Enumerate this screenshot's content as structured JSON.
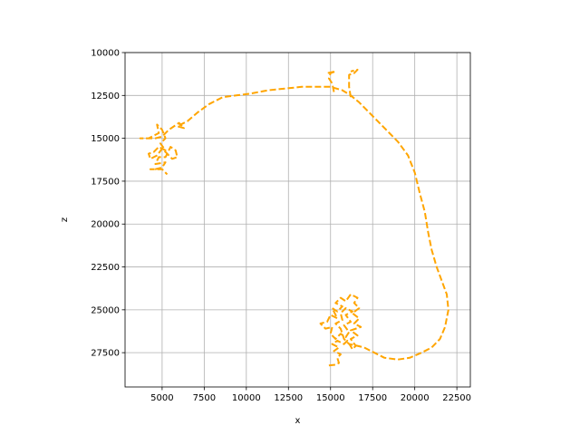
{
  "chart_data": {
    "type": "line",
    "title": "",
    "xlabel": "x",
    "ylabel": "z",
    "xlim": [
      2800,
      23300
    ],
    "ylim": [
      29500,
      10000
    ],
    "y_inverted": true,
    "grid": true,
    "x_ticks": [
      5000,
      7500,
      10000,
      12500,
      15000,
      17500,
      20000,
      22500
    ],
    "x_tick_labels": [
      "5000",
      "7500",
      "10000",
      "12500",
      "15000",
      "17500",
      "20000",
      "22500"
    ],
    "y_ticks": [
      10000,
      12500,
      15000,
      17500,
      20000,
      22500,
      25000,
      27500
    ],
    "y_tick_labels": [
      "10000",
      "12500",
      "15000",
      "17500",
      "20000",
      "22500",
      "25000",
      "27500"
    ],
    "colors": {
      "series": "#FFA500",
      "grid": "#b0b0b0",
      "frame": "#000000"
    },
    "line_style": "dashed",
    "series": [
      {
        "points": [
          [
            14900,
            28250
          ],
          [
            15300,
            28200
          ],
          [
            15500,
            28100
          ],
          [
            15400,
            27800
          ],
          [
            15600,
            27600
          ],
          [
            15200,
            27400
          ],
          [
            15500,
            27200
          ],
          [
            15100,
            27000
          ],
          [
            15400,
            26800
          ],
          [
            15800,
            27000
          ],
          [
            16000,
            26800
          ],
          [
            16300,
            27300
          ],
          [
            16500,
            27100
          ],
          [
            16200,
            26700
          ],
          [
            16600,
            26500
          ],
          [
            16200,
            26200
          ],
          [
            16800,
            26000
          ],
          [
            16400,
            25800
          ],
          [
            16700,
            25500
          ],
          [
            16300,
            25200
          ],
          [
            16700,
            24900
          ],
          [
            16400,
            24600
          ],
          [
            16600,
            24300
          ],
          [
            16200,
            24100
          ],
          [
            15900,
            24500
          ],
          [
            15600,
            24300
          ],
          [
            15300,
            24600
          ],
          [
            15700,
            24800
          ],
          [
            15400,
            25100
          ],
          [
            15100,
            24900
          ],
          [
            15400,
            25500
          ],
          [
            15000,
            25300
          ],
          [
            14800,
            25700
          ],
          [
            14400,
            25800
          ],
          [
            14700,
            26100
          ],
          [
            15100,
            26000
          ],
          [
            15000,
            26400
          ],
          [
            15300,
            26700
          ],
          [
            15600,
            26400
          ],
          [
            15900,
            26600
          ],
          [
            16100,
            26300
          ],
          [
            15800,
            25900
          ],
          [
            16200,
            25700
          ],
          [
            15900,
            25300
          ],
          [
            16300,
            25100
          ],
          [
            15900,
            24900
          ],
          [
            15600,
            25200
          ],
          [
            15700,
            25600
          ],
          [
            15300,
            25800
          ],
          [
            15600,
            26100
          ],
          [
            15800,
            26700
          ],
          [
            16100,
            27000
          ],
          [
            16600,
            27100
          ],
          [
            17000,
            27200
          ],
          [
            17600,
            27500
          ],
          [
            18200,
            27800
          ],
          [
            19000,
            27900
          ],
          [
            19700,
            27800
          ],
          [
            20400,
            27500
          ],
          [
            21000,
            27200
          ],
          [
            21500,
            26700
          ],
          [
            21800,
            26000
          ],
          [
            22000,
            25000
          ],
          [
            21900,
            24100
          ],
          [
            21600,
            23300
          ],
          [
            21300,
            22500
          ],
          [
            21000,
            21500
          ],
          [
            20800,
            20500
          ],
          [
            20600,
            19300
          ],
          [
            20300,
            18200
          ],
          [
            20000,
            17000
          ],
          [
            19600,
            16000
          ],
          [
            19000,
            15200
          ],
          [
            18500,
            14700
          ],
          [
            17800,
            14000
          ],
          [
            17200,
            13400
          ],
          [
            16700,
            12900
          ],
          [
            16200,
            12500
          ],
          [
            15700,
            12200
          ],
          [
            15000,
            12000
          ],
          [
            14200,
            12000
          ],
          [
            13300,
            12000
          ],
          [
            12300,
            12100
          ],
          [
            11300,
            12200
          ],
          [
            10200,
            12400
          ],
          [
            9400,
            12500
          ],
          [
            8600,
            12600
          ],
          [
            7800,
            13000
          ],
          [
            7100,
            13500
          ],
          [
            6500,
            14000
          ],
          [
            5900,
            14300
          ],
          [
            6300,
            14400
          ],
          [
            6000,
            14100
          ],
          [
            5400,
            14500
          ],
          [
            5000,
            14900
          ],
          [
            4600,
            15000
          ],
          [
            4200,
            15000
          ],
          [
            3700,
            15000
          ],
          [
            4200,
            15000
          ],
          [
            4800,
            14700
          ],
          [
            4700,
            14200
          ],
          [
            5000,
            14500
          ],
          [
            5200,
            15000
          ],
          [
            4900,
            15300
          ],
          [
            5200,
            15700
          ],
          [
            4800,
            15500
          ],
          [
            4500,
            15800
          ],
          [
            4200,
            15900
          ],
          [
            4300,
            16200
          ],
          [
            4700,
            16000
          ],
          [
            5000,
            15600
          ],
          [
            5300,
            15900
          ],
          [
            5600,
            16200
          ],
          [
            5900,
            16100
          ],
          [
            5800,
            15700
          ],
          [
            5500,
            15500
          ],
          [
            5200,
            16100
          ],
          [
            4800,
            16100
          ],
          [
            4600,
            16500
          ],
          [
            5200,
            16400
          ],
          [
            5000,
            16700
          ],
          [
            4600,
            16800
          ],
          [
            4300,
            16800
          ],
          [
            5000,
            16800
          ],
          [
            5300,
            17100
          ]
        ]
      },
      {
        "points": [
          [
            16200,
            12600
          ],
          [
            16100,
            12000
          ],
          [
            16100,
            11300
          ],
          [
            16400,
            11200
          ],
          [
            16600,
            11000
          ],
          [
            16200,
            11100
          ]
        ]
      },
      {
        "points": [
          [
            15200,
            12300
          ],
          [
            15100,
            11800
          ],
          [
            14900,
            11500
          ],
          [
            15000,
            11200
          ],
          [
            15300,
            11100
          ],
          [
            14800,
            11200
          ]
        ]
      }
    ]
  }
}
